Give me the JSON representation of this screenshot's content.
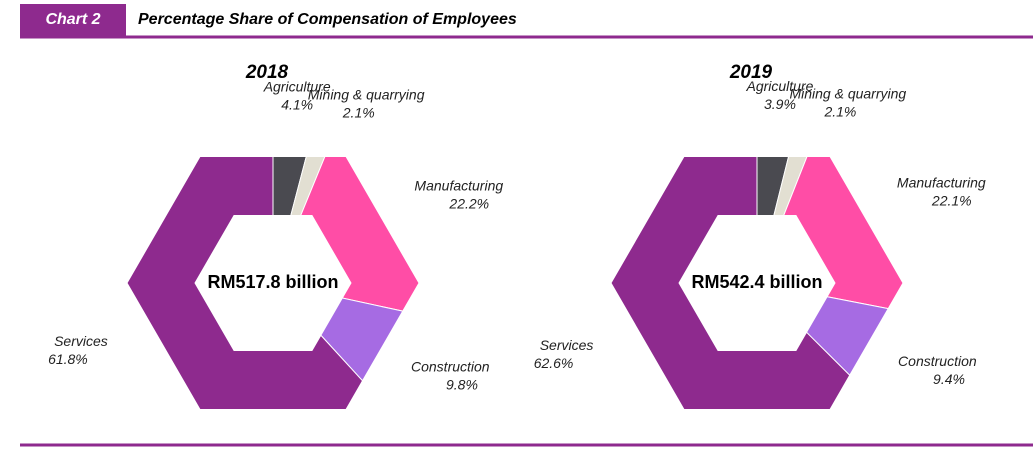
{
  "header": {
    "label": "Chart 2",
    "title": "Percentage Share of Compensation of Employees"
  },
  "chart_data": [
    {
      "type": "hexdonut",
      "title": "2018",
      "center_label": "RM517.8 billion",
      "categories": [
        "Agriculture",
        "Mining & quarrying",
        "Manufacturing",
        "Construction",
        "Services"
      ],
      "values": [
        4.1,
        2.1,
        22.2,
        9.8,
        61.8
      ],
      "value_labels": [
        "4.1%",
        "2.1%",
        "22.2%",
        "9.8%",
        "61.8%"
      ],
      "colors": [
        "#4a4a50",
        "#e2dfd2",
        "#ff4da6",
        "#a66be3",
        "#8e2a8e"
      ]
    },
    {
      "type": "hexdonut",
      "title": "2019",
      "center_label": "RM542.4 billion",
      "categories": [
        "Agriculture",
        "Mining & quarrying",
        "Manufacturing",
        "Construction",
        "Services"
      ],
      "values": [
        3.9,
        2.1,
        22.1,
        9.4,
        62.6
      ],
      "value_labels": [
        "3.9%",
        "2.1%",
        "22.1%",
        "9.4%",
        "62.6%"
      ],
      "colors": [
        "#4a4a50",
        "#e2dfd2",
        "#ff4da6",
        "#a66be3",
        "#8e2a8e"
      ]
    }
  ]
}
